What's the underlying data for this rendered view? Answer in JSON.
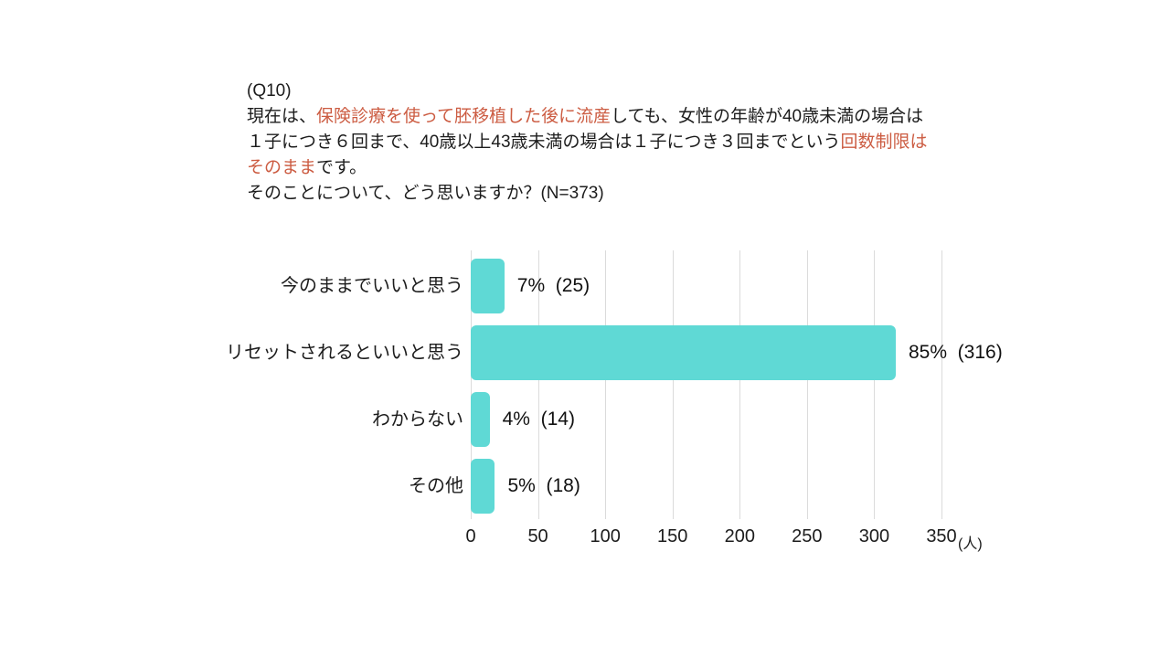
{
  "question": {
    "id": "(Q10)",
    "segments": [
      {
        "text": "現在は、",
        "highlight": false
      },
      {
        "text": "保険診療を使って胚移植した後に流産",
        "highlight": true
      },
      {
        "text": "しても、女性の年齢が40歳未満の場合は１子につき６回まで、40歳以上43歳未満の場合は１子につき３回までという",
        "highlight": false
      },
      {
        "text": "回数制限はそのまま",
        "highlight": true
      },
      {
        "text": "です。",
        "highlight": false
      }
    ],
    "prompt": "そのことについて、どう思いますか？(N=373)"
  },
  "chart_data": {
    "type": "bar",
    "orientation": "horizontal",
    "title": "",
    "categories": [
      "今のままでいいと思う",
      "リセットされるといいと思う",
      "わからない",
      "その他"
    ],
    "values": [
      25,
      316,
      14,
      18
    ],
    "percentages": [
      7,
      85,
      4,
      5
    ],
    "value_labels": [
      "7%  (25)",
      "85%  (316)",
      "4%  (14)",
      "5%  (18)"
    ],
    "x_ticks": [
      0,
      50,
      100,
      150,
      200,
      250,
      300,
      350
    ],
    "xlim": [
      0,
      350
    ],
    "unit": "(人)",
    "total_n": 373,
    "grid": true,
    "legend": false,
    "bar_color": "#5FD9D5"
  },
  "colors": {
    "highlight": "#CC5C42",
    "bar": "#5FD9D5",
    "grid": "#DBDBDB",
    "text": "#1C1C1C",
    "background": "#FFFFFF"
  }
}
